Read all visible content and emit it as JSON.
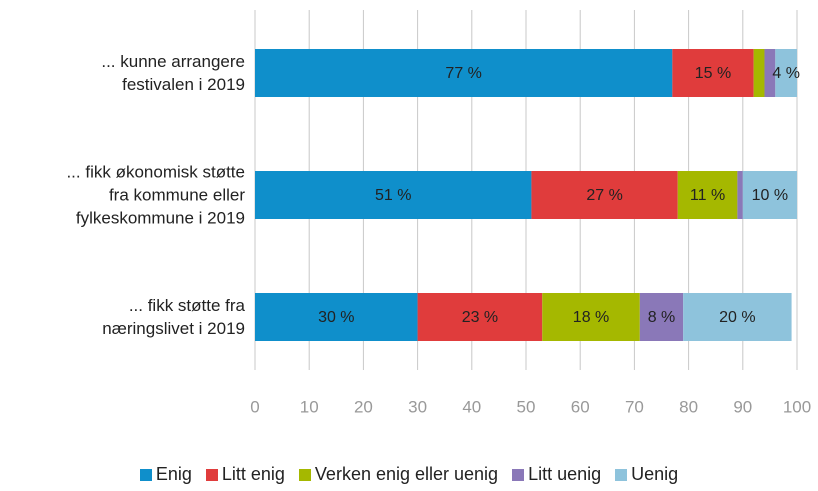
{
  "chart_data": {
    "type": "stacked-barh",
    "categories": [
      "... kunne arrangere\nfestivalen i 2019",
      "... fikk økonomisk støtte\nfra kommune eller\nfylkeskommune i 2019",
      "... fikk støtte fra\nnæringslivet i 2019"
    ],
    "series": [
      {
        "name": "Enig",
        "color": "#0f8fcb",
        "values": [
          77,
          51,
          30
        ],
        "value_labels": [
          "77 %",
          "51 %",
          "30 %"
        ]
      },
      {
        "name": "Litt enig",
        "color": "#e03c3c",
        "values": [
          15,
          27,
          23
        ],
        "value_labels": [
          "15 %",
          "27 %",
          "23 %"
        ]
      },
      {
        "name": "Verken enig eller uenig",
        "color": "#a5b800",
        "values": [
          2,
          11,
          18
        ],
        "value_labels": [
          null,
          "11 %",
          "18 %"
        ]
      },
      {
        "name": "Litt uenig",
        "color": "#8a78b8",
        "values": [
          2,
          1,
          8
        ],
        "value_labels": [
          null,
          null,
          "8 %"
        ]
      },
      {
        "name": "Uenig",
        "color": "#8ec3dc",
        "values": [
          4,
          10,
          20
        ],
        "value_labels": [
          "4 %",
          "10 %",
          "20 %"
        ]
      }
    ],
    "xlim": [
      0,
      100
    ],
    "xticks": [
      0,
      10,
      20,
      30,
      40,
      50,
      60,
      70,
      80,
      90,
      100
    ],
    "grid": true
  }
}
